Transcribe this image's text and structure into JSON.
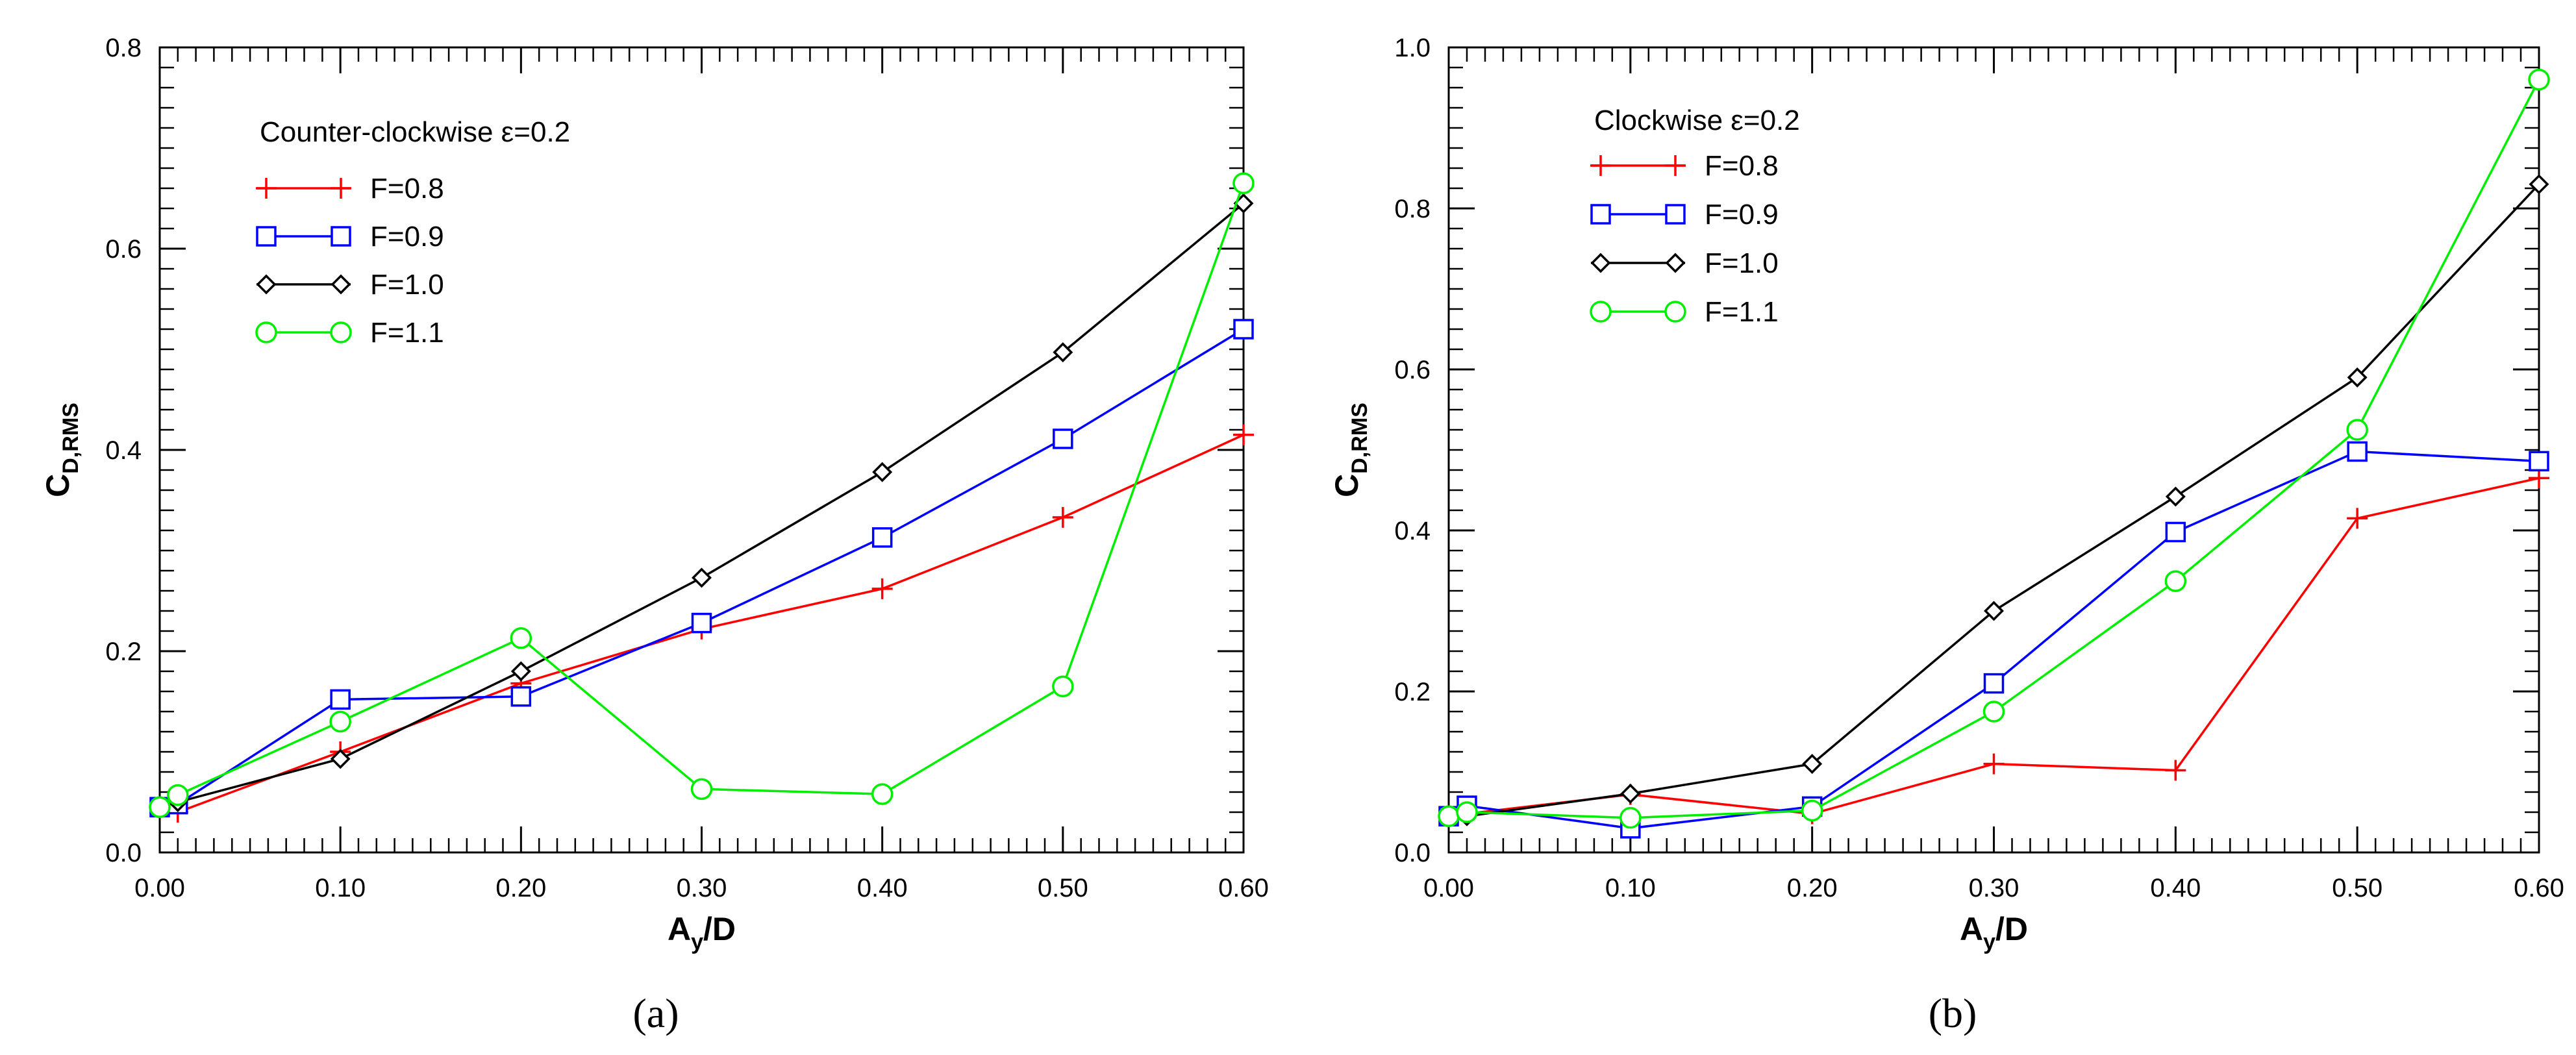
{
  "chart_data": [
    {
      "type": "line",
      "panel_label": "(a)",
      "legend_title": "Counter-clockwise ε=0.2",
      "legend_position": "top-left",
      "xlabel": {
        "main": "A",
        "sub": "y",
        "suffix": "/D"
      },
      "ylabel": {
        "main": "C",
        "sub": "D,RMS"
      },
      "xlim": [
        0,
        0.6
      ],
      "ylim": [
        0,
        0.8
      ],
      "x_ticks": [
        {
          "value": 0.0,
          "label": "0.00"
        },
        {
          "value": 0.1,
          "label": "0.10"
        },
        {
          "value": 0.2,
          "label": "0.20"
        },
        {
          "value": 0.3,
          "label": "0.30"
        },
        {
          "value": 0.4,
          "label": "0.40"
        },
        {
          "value": 0.5,
          "label": "0.50"
        },
        {
          "value": 0.6,
          "label": "0.60"
        }
      ],
      "y_ticks": [
        {
          "value": 0.0,
          "label": "0.0"
        },
        {
          "value": 0.2,
          "label": "0.2"
        },
        {
          "value": 0.4,
          "label": "0.4"
        },
        {
          "value": 0.6,
          "label": "0.6"
        },
        {
          "value": 0.8,
          "label": "0.8"
        }
      ],
      "series": [
        {
          "name": "F=0.8",
          "color": "#ff0000",
          "marker": "plus",
          "x": [
            0.0,
            0.01,
            0.1,
            0.2,
            0.3,
            0.4,
            0.5,
            0.6
          ],
          "y": [
            0.045,
            0.04,
            0.1,
            0.168,
            0.222,
            0.262,
            0.333,
            0.415
          ]
        },
        {
          "name": "F=0.9",
          "color": "#0000ff",
          "marker": "square",
          "x": [
            0.0,
            0.01,
            0.1,
            0.2,
            0.3,
            0.4,
            0.5,
            0.6
          ],
          "y": [
            0.045,
            0.048,
            0.152,
            0.155,
            0.228,
            0.313,
            0.411,
            0.52
          ]
        },
        {
          "name": "F=1.0",
          "color": "#000000",
          "marker": "diamond",
          "x": [
            0.0,
            0.01,
            0.1,
            0.2,
            0.3,
            0.4,
            0.5,
            0.6
          ],
          "y": [
            0.045,
            0.05,
            0.093,
            0.18,
            0.273,
            0.378,
            0.497,
            0.645
          ]
        },
        {
          "name": "F=1.1",
          "color": "#00ee00",
          "marker": "circle",
          "x": [
            0.0,
            0.01,
            0.1,
            0.2,
            0.3,
            0.4,
            0.5,
            0.6
          ],
          "y": [
            0.045,
            0.057,
            0.13,
            0.213,
            0.063,
            0.058,
            0.165,
            0.665
          ]
        }
      ]
    },
    {
      "type": "line",
      "panel_label": "(b)",
      "legend_title": "Clockwise ε=0.2",
      "legend_position": "top-left",
      "xlabel": {
        "main": "A",
        "sub": "y",
        "suffix": "/D"
      },
      "ylabel": {
        "main": "C",
        "sub": "D,RMS"
      },
      "xlim": [
        0,
        0.6
      ],
      "ylim": [
        0,
        1.0
      ],
      "x_ticks": [
        {
          "value": 0.0,
          "label": "0.00"
        },
        {
          "value": 0.1,
          "label": "0.10"
        },
        {
          "value": 0.2,
          "label": "0.20"
        },
        {
          "value": 0.3,
          "label": "0.30"
        },
        {
          "value": 0.4,
          "label": "0.40"
        },
        {
          "value": 0.5,
          "label": "0.50"
        },
        {
          "value": 0.6,
          "label": "0.60"
        }
      ],
      "y_ticks": [
        {
          "value": 0.0,
          "label": "0.0"
        },
        {
          "value": 0.2,
          "label": "0.2"
        },
        {
          "value": 0.4,
          "label": "0.4"
        },
        {
          "value": 0.6,
          "label": "0.6"
        },
        {
          "value": 0.8,
          "label": "0.8"
        },
        {
          "value": 1.0,
          "label": "1.0"
        }
      ],
      "series": [
        {
          "name": "F=0.8",
          "color": "#ff0000",
          "marker": "plus",
          "x": [
            0.0,
            0.01,
            0.1,
            0.2,
            0.3,
            0.4,
            0.5,
            0.6
          ],
          "y": [
            0.045,
            0.048,
            0.072,
            0.048,
            0.11,
            0.102,
            0.415,
            0.465
          ]
        },
        {
          "name": "F=0.9",
          "color": "#0000ff",
          "marker": "square",
          "x": [
            0.0,
            0.01,
            0.1,
            0.2,
            0.3,
            0.4,
            0.5,
            0.6
          ],
          "y": [
            0.045,
            0.058,
            0.03,
            0.057,
            0.21,
            0.398,
            0.498,
            0.486
          ]
        },
        {
          "name": "F=1.0",
          "color": "#000000",
          "marker": "diamond",
          "x": [
            0.0,
            0.01,
            0.1,
            0.2,
            0.3,
            0.4,
            0.5,
            0.6
          ],
          "y": [
            0.045,
            0.045,
            0.073,
            0.11,
            0.3,
            0.442,
            0.59,
            0.83
          ]
        },
        {
          "name": "F=1.1",
          "color": "#00ee00",
          "marker": "circle",
          "x": [
            0.0,
            0.01,
            0.1,
            0.2,
            0.3,
            0.4,
            0.5,
            0.6
          ],
          "y": [
            0.045,
            0.05,
            0.043,
            0.052,
            0.175,
            0.337,
            0.525,
            0.96
          ]
        }
      ]
    }
  ]
}
